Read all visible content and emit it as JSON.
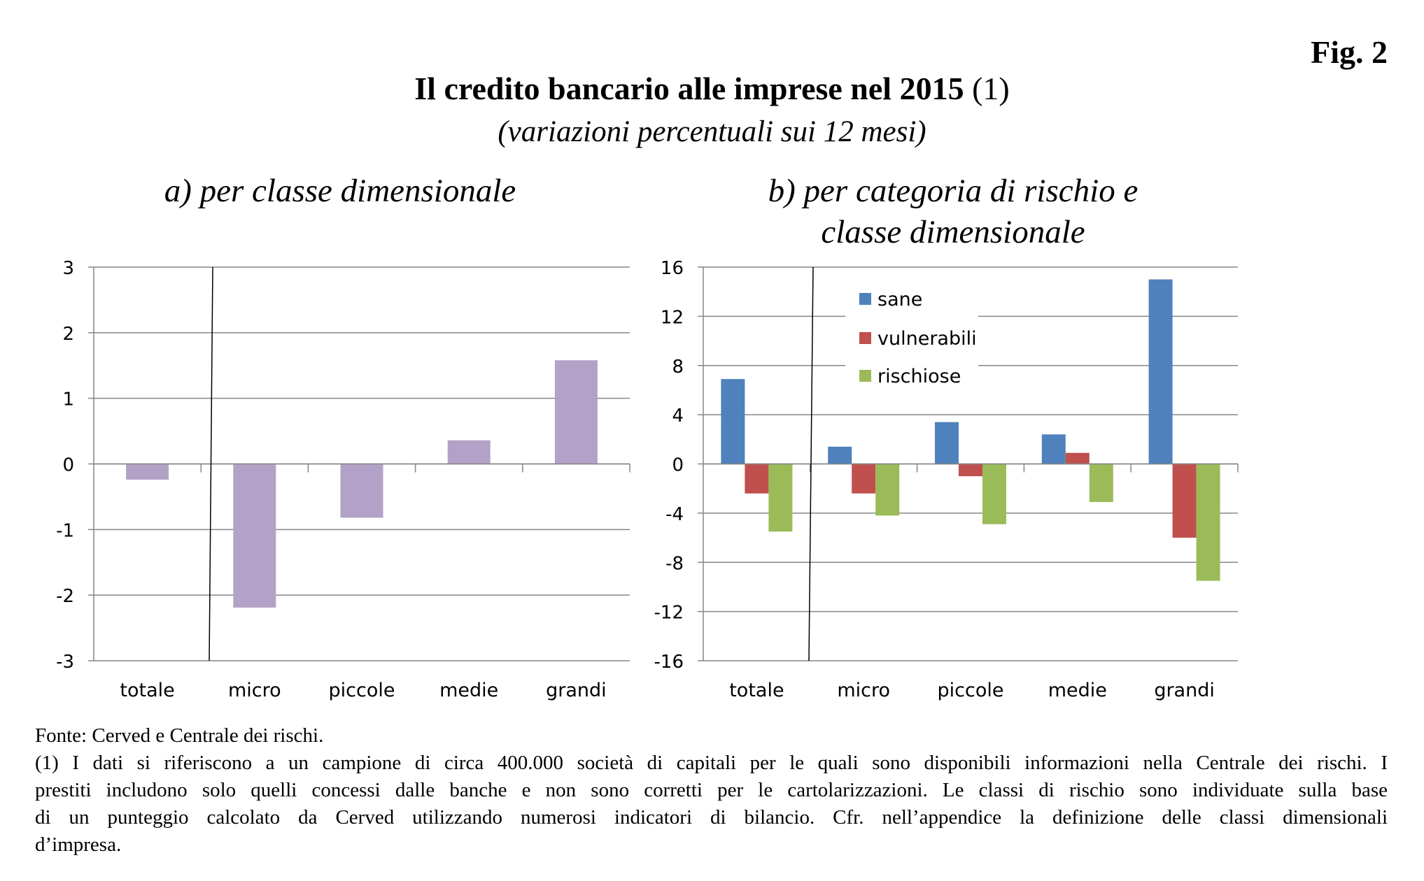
{
  "figure_label": "Fig. 2",
  "title": "Il credito bancario alle imprese nel 2015",
  "title_note": "(1)",
  "subtitle": "(variazioni percentuali sui 12 mesi)",
  "chart_data": [
    {
      "type": "bar",
      "title": "a) per classe dimensionale",
      "categories": [
        "totale",
        "micro",
        "piccole",
        "medie",
        "grandi"
      ],
      "values": [
        -0.24,
        -2.19,
        -0.82,
        0.36,
        1.58
      ],
      "ylim": [
        -3,
        3
      ],
      "yticks": [
        "3",
        "2",
        "1",
        "0",
        "-1",
        "-2",
        "-3"
      ],
      "ytick_values": [
        3,
        2,
        1,
        0,
        -1,
        -2,
        -3
      ],
      "grid": true,
      "color": "#b3a2c7"
    },
    {
      "type": "bar",
      "title_lines": [
        "b) per categoria di rischio e",
        "classe dimensionale"
      ],
      "categories": [
        "totale",
        "micro",
        "piccole",
        "medie",
        "grandi"
      ],
      "series": [
        {
          "name": "sane",
          "values": [
            6.9,
            1.4,
            3.4,
            2.4,
            15.0
          ],
          "color": "#4f81bd"
        },
        {
          "name": "vulnerabili",
          "values": [
            -2.4,
            -2.4,
            -1.0,
            0.9,
            -6.0
          ],
          "color": "#c0504d"
        },
        {
          "name": "rischiose",
          "values": [
            -5.5,
            -4.2,
            -4.9,
            -3.1,
            -9.5
          ],
          "color": "#9bbb59"
        }
      ],
      "ylim": [
        -16,
        16
      ],
      "yticks": [
        "16",
        "12",
        "8",
        "4",
        "0",
        "-4",
        "-8",
        "-12",
        "-16"
      ],
      "ytick_values": [
        16,
        12,
        8,
        4,
        0,
        -4,
        -8,
        -12,
        -16
      ],
      "grid": true,
      "legend": "top-left inside"
    }
  ],
  "notes": {
    "source": "Fonte: Cerved e Centrale dei rischi.",
    "lines": [
      "(1) I dati si riferiscono a un campione di circa 400.000 società di capitali per le quali sono disponibili informazioni nella Centrale dei rischi. I",
      "prestiti includono solo quelli concessi dalle banche e non sono corretti per le cartolarizzazioni. Le classi di rischio sono individuate sulla base",
      "di un punteggio calcolato da Cerved utilizzando numerosi indicatori di bilancio. Cfr. nell’appendice la definizione delle classi dimensionali",
      "d’impresa."
    ]
  }
}
